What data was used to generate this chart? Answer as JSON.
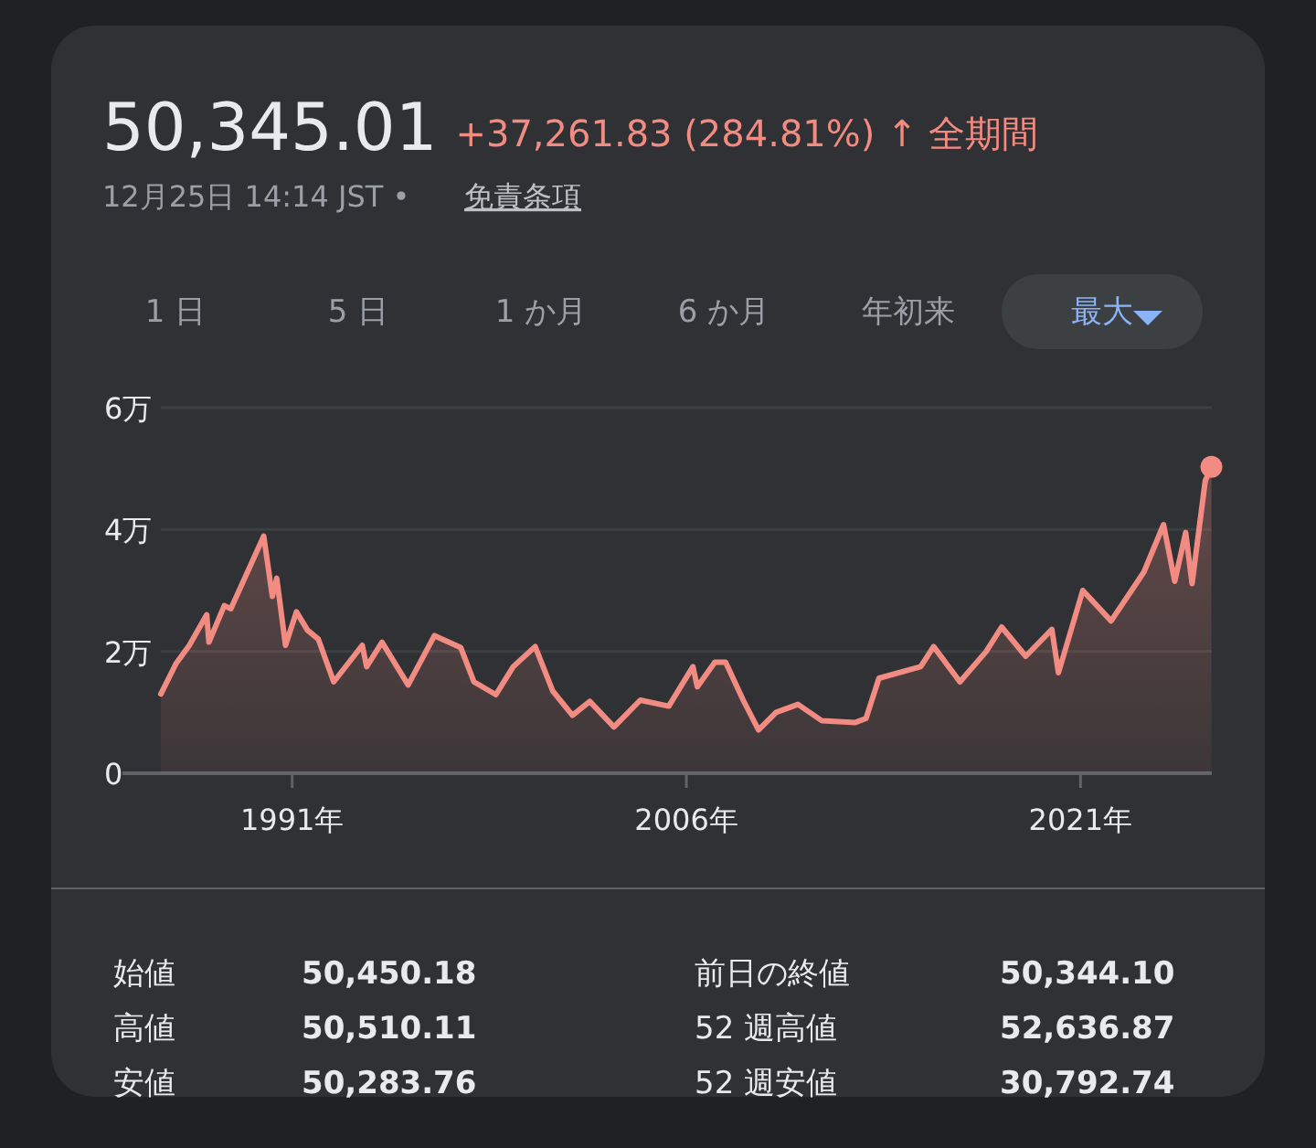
{
  "chart_data": {
    "type": "area",
    "title": "50,345.01",
    "subtitle": "+37,261.83 (284.81%) ↑ 全期間",
    "annotations": [
      "12月25日 14:14 JST •",
      "免責条項",
      "1 日",
      "5 日",
      "1 か月",
      "6 か月",
      "年初来",
      "最大",
      "始値",
      "50,450.18",
      "高値",
      "50,510.11",
      "安値",
      "50,283.76",
      "前日の終値",
      "50,344.10",
      "52 週高値",
      "52,636.87",
      "52 週安値",
      "30,792.74"
    ],
    "xlim": [
      "1986-01-01",
      "2025-12-31"
    ],
    "xticks": [
      {
        "value": "1991-01-01",
        "label": "1991年"
      },
      {
        "value": "2006-01-01",
        "label": "2006年"
      },
      {
        "value": "2021-01-01",
        "label": "2021年"
      }
    ],
    "ylim": [
      0,
      6
    ],
    "yticks": [
      0,
      {
        "value": 2,
        "label": "2万"
      },
      {
        "value": 4,
        "label": "4万"
      },
      {
        "value": 6,
        "label": "6万"
      }
    ],
    "grid": "y",
    "series": [
      {
        "color": "#f28b82",
        "x": [
          "1986-01",
          "1986-08",
          "1987-02",
          "1987-10",
          "1987-11",
          "1988-06",
          "1988-09",
          "1989-12",
          "1990-04",
          "1990-06",
          "1990-10",
          "1991-03",
          "1991-08",
          "1992-01",
          "1992-08",
          "1993-09",
          "1993-11",
          "1994-06",
          "1995-06",
          "1996-06",
          "1997-06",
          "1997-12",
          "1998-10",
          "1999-06",
          "2000-04",
          "2000-12",
          "2001-09",
          "2002-05",
          "2003-04",
          "2004-04",
          "2005-05",
          "2006-04",
          "2006-06",
          "2007-02",
          "2007-07",
          "2008-03",
          "2008-10",
          "2009-06",
          "2010-04",
          "2011-03",
          "2012-06",
          "2012-11",
          "2013-05",
          "2014-12",
          "2015-06",
          "2016-06",
          "2017-06",
          "2018-01",
          "2018-12",
          "2019-12",
          "2020-03",
          "2021-02",
          "2022-03",
          "2023-06",
          "2024-03",
          "2024-08",
          "2025-01",
          "2025-04",
          "2025-10",
          "2025-12-25"
        ],
        "values": [
          1.3,
          1.8,
          2.1,
          2.6,
          2.15,
          2.75,
          2.7,
          3.89,
          2.9,
          3.2,
          2.1,
          2.65,
          2.35,
          2.2,
          1.5,
          2.1,
          1.75,
          2.15,
          1.45,
          2.26,
          2.06,
          1.5,
          1.29,
          1.75,
          2.08,
          1.35,
          0.95,
          1.18,
          0.76,
          1.2,
          1.1,
          1.75,
          1.42,
          1.82,
          1.82,
          1.2,
          0.71,
          1.0,
          1.13,
          0.86,
          0.83,
          0.9,
          1.56,
          1.75,
          2.08,
          1.5,
          2.0,
          2.4,
          1.92,
          2.36,
          1.65,
          3.0,
          2.5,
          3.3,
          4.08,
          3.15,
          3.95,
          3.11,
          4.8,
          5.03
        ]
      }
    ]
  }
}
